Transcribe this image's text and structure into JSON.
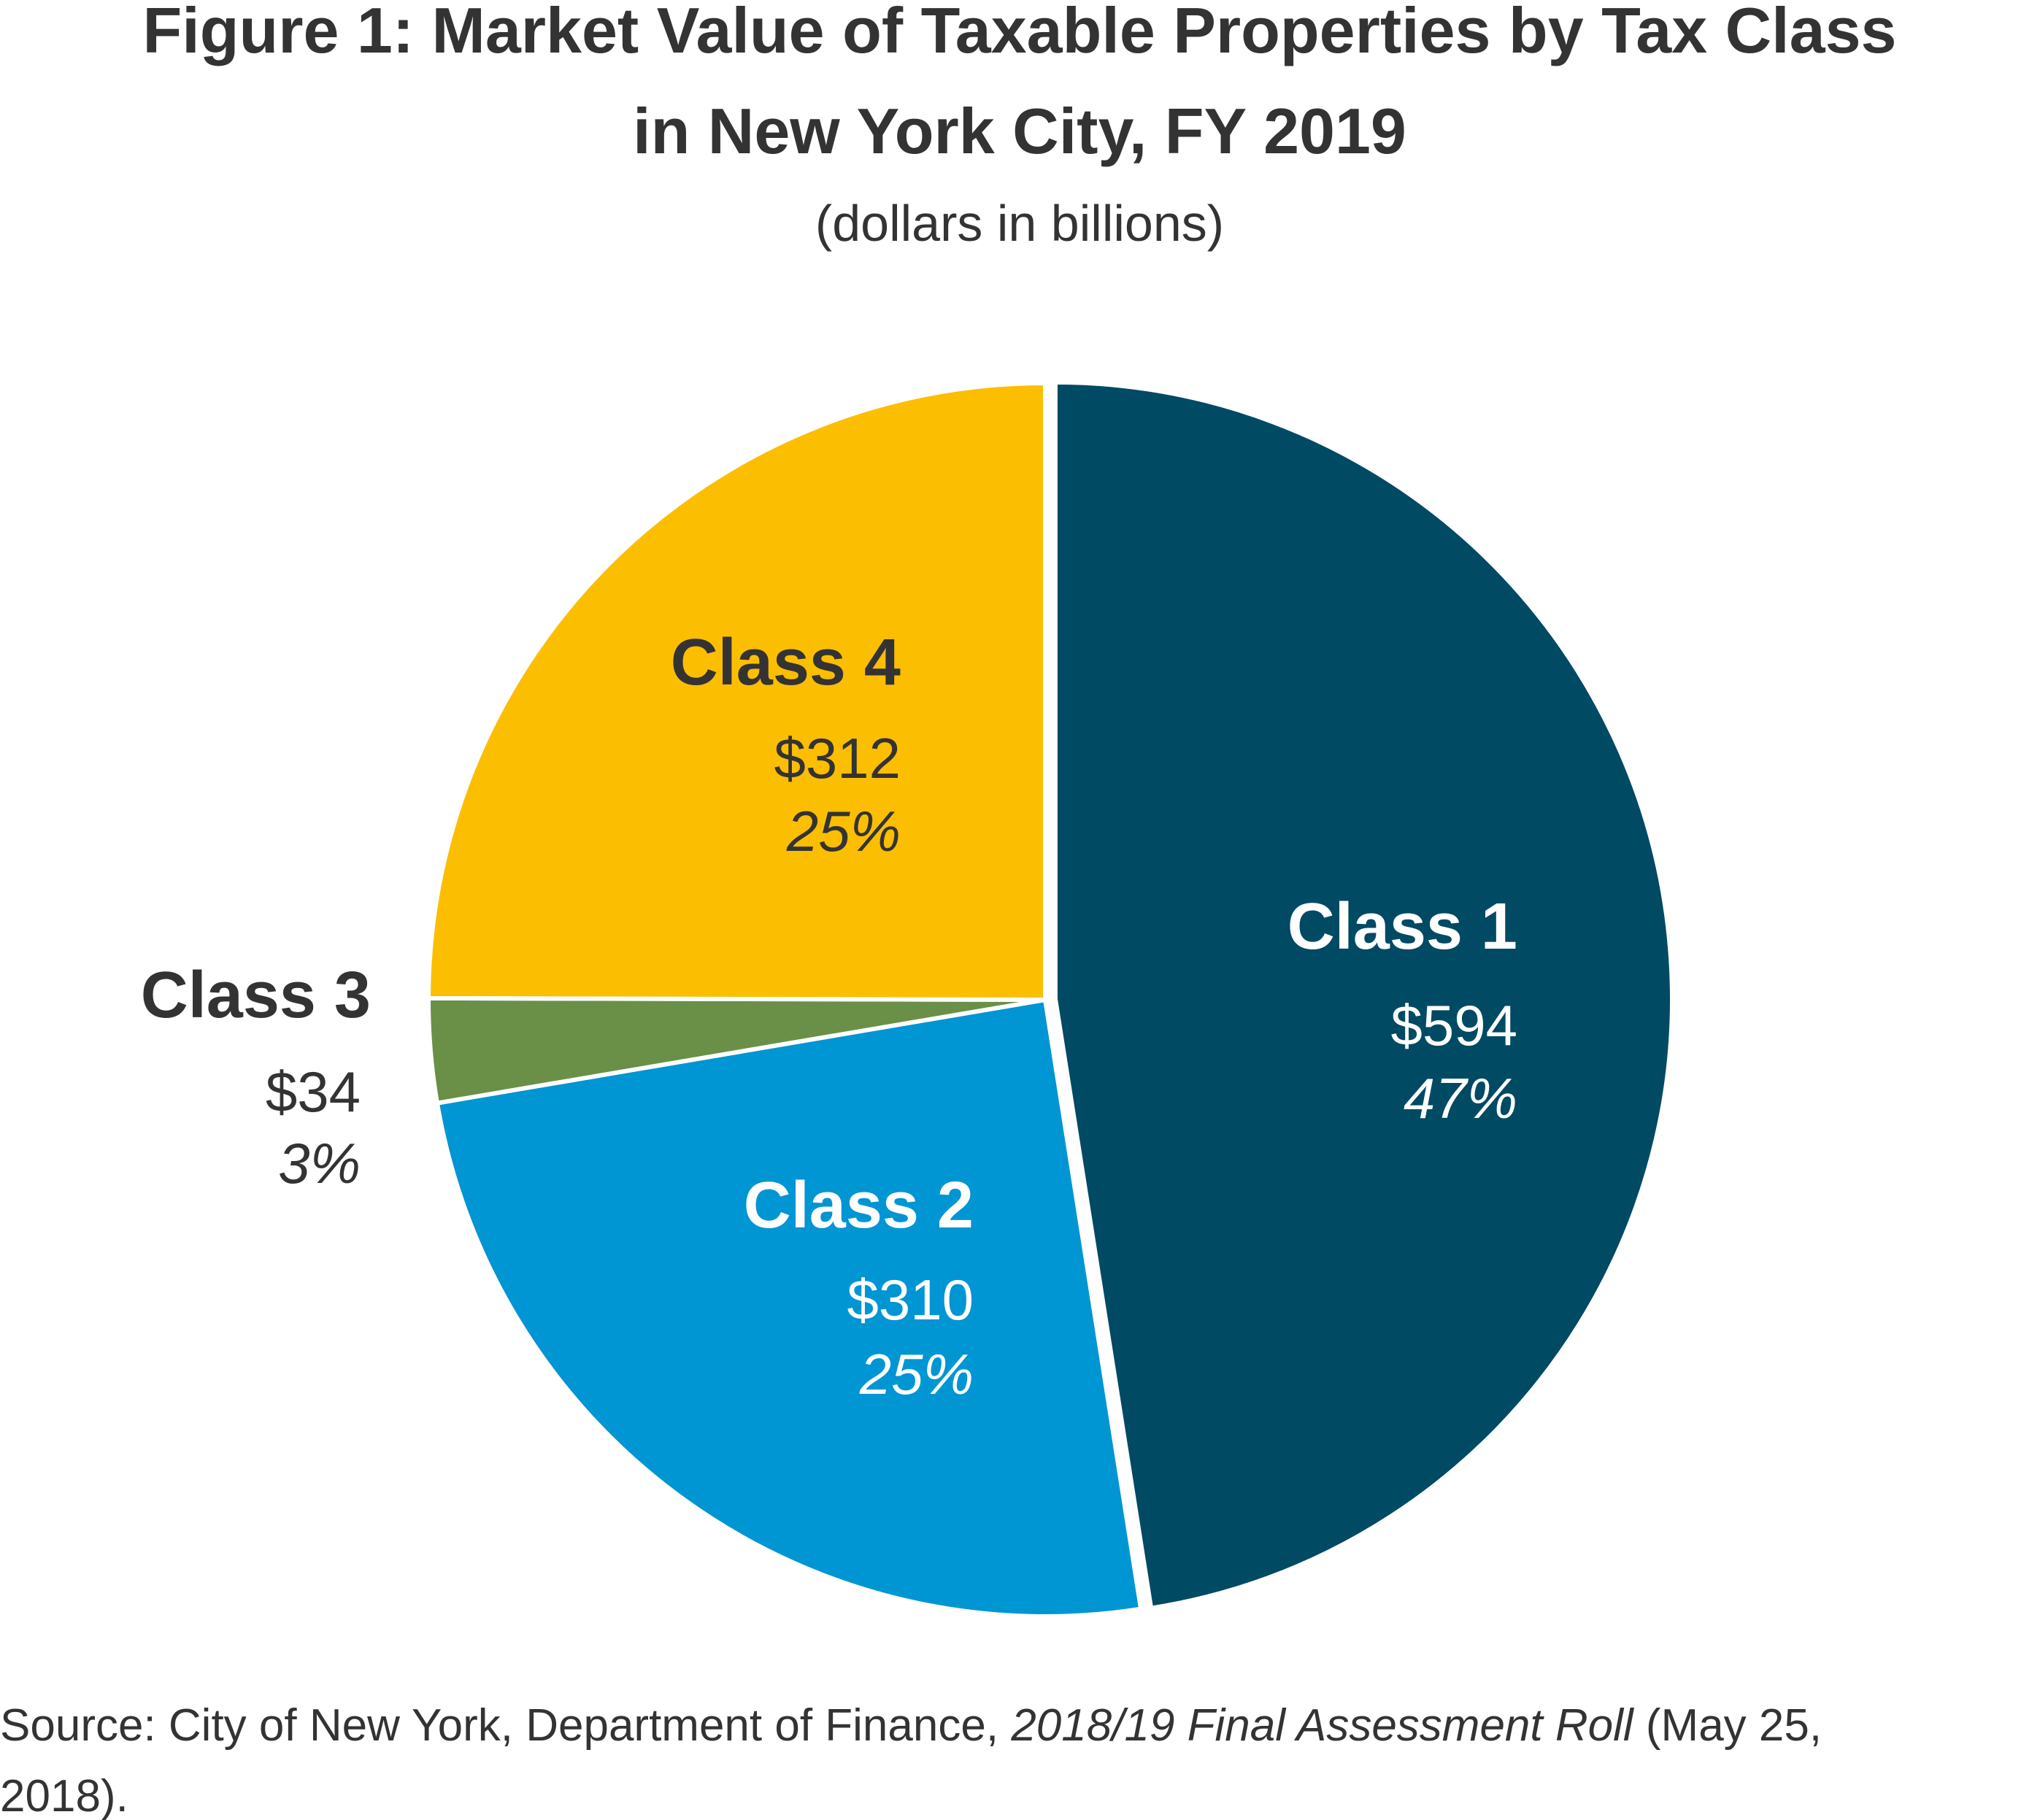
{
  "chart_data": {
    "type": "pie",
    "title": "Figure 1: Market Value of Taxable Properties by Tax Class in New York City, FY 2019",
    "title_lines": [
      "Figure 1: Market Value of Taxable Properties by Tax Class",
      "in New York City, FY 2019"
    ],
    "subtitle": "(dollars in billions)",
    "slices": [
      {
        "label": "Class 1",
        "value": 594,
        "value_label": "$594",
        "percent_label": "47%",
        "color": "#004a63",
        "label_color": "#ffffff"
      },
      {
        "label": "Class 2",
        "value": 310,
        "value_label": "$310",
        "percent_label": "25%",
        "color": "#0095d3",
        "label_color": "#ffffff"
      },
      {
        "label": "Class 3",
        "value": 34,
        "value_label": "$34",
        "percent_label": "3%",
        "color": "#6a8f47",
        "label_color": "#333333"
      },
      {
        "label": "Class 4",
        "value": 312,
        "value_label": "$312",
        "percent_label": "25%",
        "color": "#fcbe00",
        "label_color": "#333333"
      }
    ],
    "exploded": "Class 1",
    "start": "top",
    "direction": "clockwise"
  },
  "source": {
    "prefix": "Source: City of New York, Department of Finance, ",
    "italic": "2018/19 Final Assessment Roll",
    "suffix_line1": " (May 25,",
    "line2": "2018)."
  }
}
